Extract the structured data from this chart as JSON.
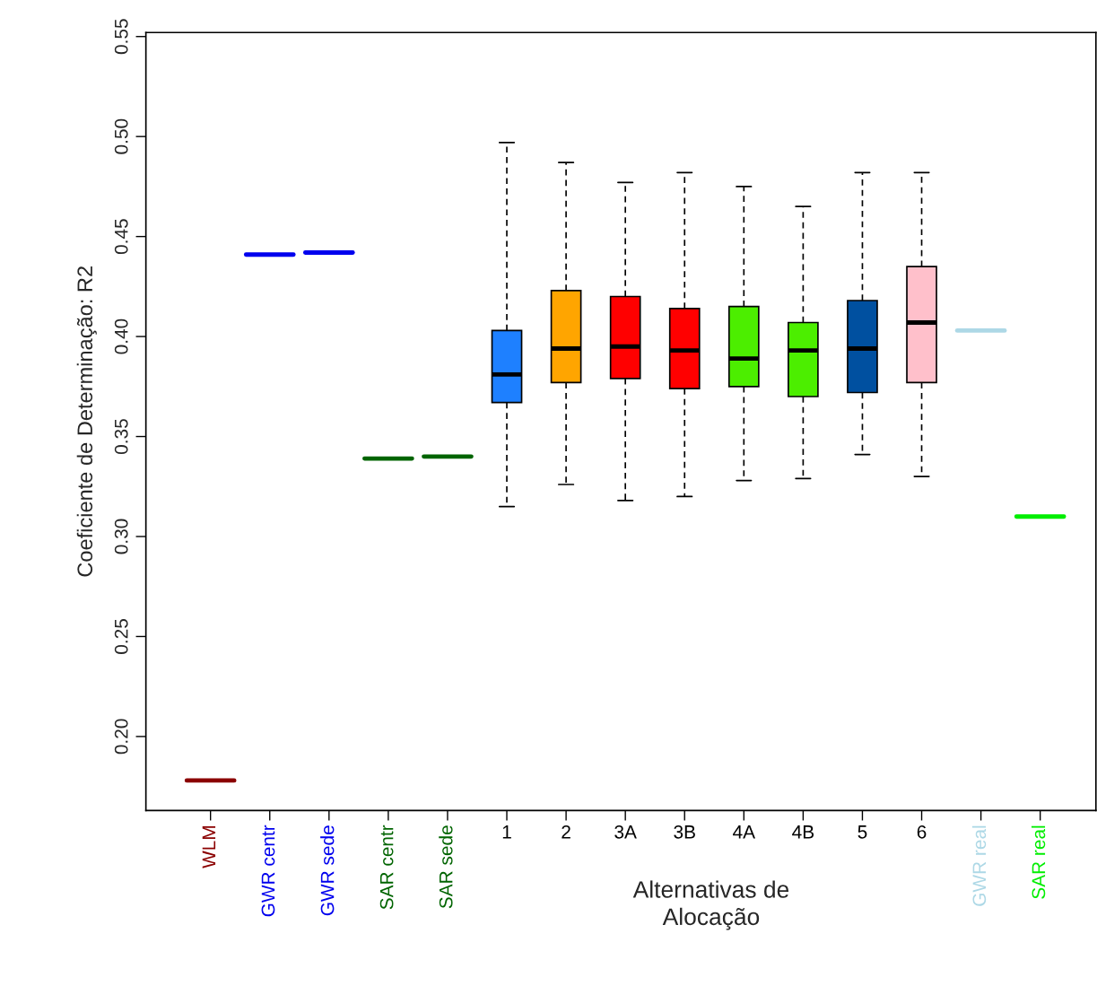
{
  "chart_data": {
    "type": "box",
    "ylabel": "Coeficiente de Determinação: R2",
    "xlabel": "Alternativas de\nAlocação",
    "categories": [
      "WLM",
      "GWR centr",
      "GWR sede",
      "SAR centr",
      "SAR sede",
      "1",
      "2",
      "3A",
      "3B",
      "4A",
      "4B",
      "5",
      "6",
      "GWR real",
      "SAR real"
    ],
    "boxes": [
      {
        "low": 0.178,
        "q1": 0.178,
        "median": 0.178,
        "q3": 0.178,
        "high": 0.178
      },
      {
        "low": 0.441,
        "q1": 0.441,
        "median": 0.441,
        "q3": 0.441,
        "high": 0.441
      },
      {
        "low": 0.442,
        "q1": 0.442,
        "median": 0.442,
        "q3": 0.442,
        "high": 0.442
      },
      {
        "low": 0.339,
        "q1": 0.339,
        "median": 0.339,
        "q3": 0.339,
        "high": 0.339
      },
      {
        "low": 0.34,
        "q1": 0.34,
        "median": 0.34,
        "q3": 0.34,
        "high": 0.34
      },
      {
        "low": 0.315,
        "q1": 0.367,
        "median": 0.381,
        "q3": 0.403,
        "high": 0.497
      },
      {
        "low": 0.326,
        "q1": 0.377,
        "median": 0.394,
        "q3": 0.423,
        "high": 0.487
      },
      {
        "low": 0.318,
        "q1": 0.379,
        "median": 0.395,
        "q3": 0.42,
        "high": 0.477
      },
      {
        "low": 0.32,
        "q1": 0.374,
        "median": 0.393,
        "q3": 0.414,
        "high": 0.482
      },
      {
        "low": 0.328,
        "q1": 0.375,
        "median": 0.389,
        "q3": 0.415,
        "high": 0.475
      },
      {
        "low": 0.329,
        "q1": 0.37,
        "median": 0.393,
        "q3": 0.407,
        "high": 0.465
      },
      {
        "low": 0.341,
        "q1": 0.372,
        "median": 0.394,
        "q3": 0.418,
        "high": 0.482
      },
      {
        "low": 0.33,
        "q1": 0.377,
        "median": 0.407,
        "q3": 0.435,
        "high": 0.482
      },
      {
        "low": 0.403,
        "q1": 0.403,
        "median": 0.403,
        "q3": 0.403,
        "high": 0.403
      },
      {
        "low": 0.31,
        "q1": 0.31,
        "median": 0.31,
        "q3": 0.31,
        "high": 0.31
      }
    ],
    "colors": [
      "#8b0000",
      "#0000ee",
      "#0000ee",
      "#006400",
      "#006400",
      "#1e80ff",
      "#ffa500",
      "#ff0000",
      "#ff0000",
      "#4cee00",
      "#4cee00",
      "#0050a0",
      "#ffc0cb",
      "#add8e6",
      "#00ee00"
    ],
    "ylim": [
      0.163,
      0.552
    ],
    "yticks": [
      {
        "value": 0.2,
        "label": "0.20"
      },
      0.25,
      {
        "value": 0.3,
        "label": "0.30"
      },
      0.35,
      {
        "value": 0.4,
        "label": "0.40"
      },
      0.45,
      {
        "value": 0.5,
        "label": "0.50"
      },
      0.55
    ],
    "grid": false
  }
}
